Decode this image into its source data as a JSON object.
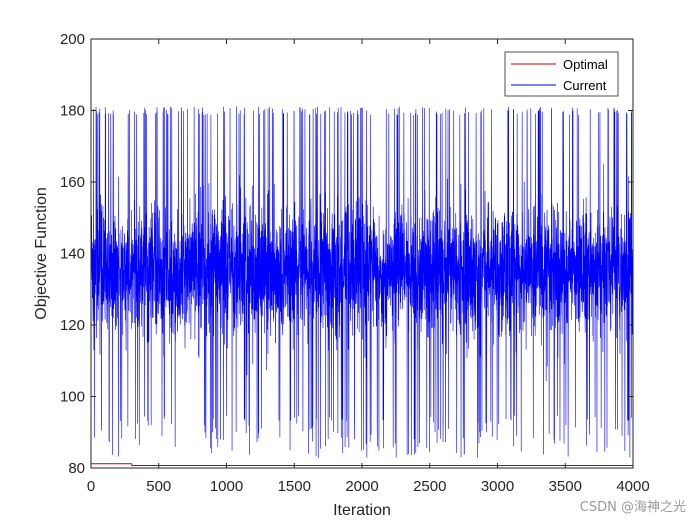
{
  "chart_data": {
    "type": "line",
    "title": "",
    "xlabel": "Iteration",
    "ylabel": "Objective Function",
    "xlim": [
      0,
      4000
    ],
    "ylim": [
      80,
      200
    ],
    "xticks": [
      0,
      500,
      1000,
      1500,
      2000,
      2500,
      3000,
      3500,
      4000
    ],
    "yticks": [
      80,
      100,
      120,
      140,
      160,
      180,
      200
    ],
    "grid": false,
    "legend_position": "top-right",
    "series": [
      {
        "name": "Optimal",
        "color": "#c00000",
        "x": [
          0,
          300,
          301,
          4000
        ],
        "y": [
          81.2,
          81.2,
          80.7,
          80.7
        ]
      },
      {
        "name": "Current",
        "color": "#0000ff",
        "x_range": [
          0,
          4000
        ],
        "y_range": [
          80.7,
          181.2
        ],
        "typical_band": [
          118,
          158
        ],
        "y_mean": 135
      }
    ]
  },
  "watermark": "CSDN @海神之光"
}
